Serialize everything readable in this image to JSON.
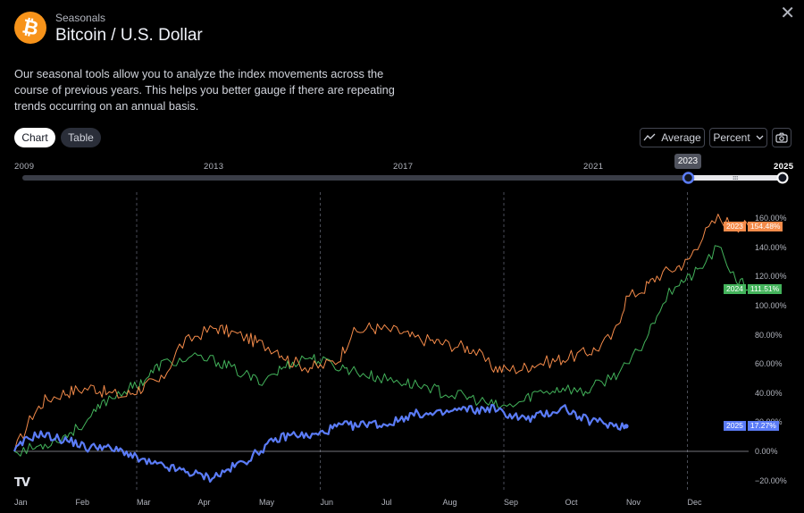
{
  "header": {
    "logo_symbol": "₿",
    "subtitle": "Seasonals",
    "title": "Bitcoin / U.S. Dollar",
    "close_symbol": "✕"
  },
  "description": "Our seasonal tools allow you to analyze the index movements across the course of previous years. This helps you better gauge if there are repeating trends occurring on an annual basis.",
  "view_tabs": {
    "chart": "Chart",
    "table": "Table"
  },
  "toolbar": {
    "average_label": "Average",
    "percent_label": "Percent"
  },
  "range_slider": {
    "year_labels": [
      "2009",
      "2013",
      "2017",
      "2021",
      "2025"
    ],
    "start_year": 2023,
    "end_year": 2025,
    "tooltip": "2023",
    "min_year": 2009,
    "max_year": 2025
  },
  "colors": {
    "y2023": "#f48b4a",
    "y2024": "#43b35b",
    "y2025": "#5b7cf7",
    "background": "#000000"
  },
  "tags": [
    {
      "year": "2023",
      "value": "154.48%"
    },
    {
      "year": "2024",
      "value": "111.51%"
    },
    {
      "year": "2025",
      "value": "17.27%"
    }
  ],
  "watermark": "TV",
  "chart_data": {
    "type": "line",
    "title": "Bitcoin / U.S. Dollar",
    "xlabel": "",
    "ylabel": "Percent",
    "x_tick_labels": [
      "Jan",
      "Feb",
      "Mar",
      "Apr",
      "May",
      "Jun",
      "Jul",
      "Aug",
      "Sep",
      "Oct",
      "Nov",
      "Dec"
    ],
    "y_tick_labels": [
      "160.00%",
      "140.00%",
      "120.00%",
      "100.00%",
      "80.00%",
      "60.00%",
      "40.00%",
      "20.00%",
      "0.00%",
      "−20.00%"
    ],
    "ylim": [
      -22,
      172
    ],
    "xlim": [
      0,
      12
    ],
    "series": [
      {
        "name": "2023",
        "x": [
          0,
          0.3,
          0.5,
          0.8,
          1,
          1.3,
          1.5,
          1.8,
          2,
          2.2,
          2.4,
          2.7,
          3,
          3.3,
          3.5,
          3.8,
          4,
          4.3,
          4.5,
          4.8,
          5,
          5.3,
          5.5,
          5.8,
          6,
          6.3,
          6.5,
          6.8,
          7,
          7.3,
          7.5,
          7.8,
          8,
          8.3,
          8.5,
          8.8,
          9,
          9.3,
          9.5,
          9.8,
          10,
          10.3,
          10.5,
          10.8,
          11,
          11.2,
          11.5,
          11.8,
          12
        ],
        "values": [
          0,
          25,
          35,
          40,
          42,
          44,
          40,
          38,
          42,
          46,
          48,
          72,
          80,
          85,
          82,
          78,
          74,
          70,
          62,
          58,
          58,
          63,
          80,
          85,
          84,
          82,
          78,
          76,
          74,
          72,
          70,
          58,
          56,
          57,
          60,
          62,
          64,
          67,
          70,
          80,
          105,
          112,
          120,
          126,
          130,
          145,
          160,
          155,
          154.48
        ]
      },
      {
        "name": "2024",
        "x": [
          0,
          0.3,
          0.5,
          0.8,
          1,
          1.3,
          1.5,
          1.8,
          2,
          2.2,
          2.4,
          2.7,
          3,
          3.3,
          3.5,
          3.8,
          4,
          4.3,
          4.5,
          4.8,
          5,
          5.3,
          5.5,
          5.8,
          6,
          6.3,
          6.5,
          6.8,
          7,
          7.3,
          7.5,
          7.8,
          8,
          8.3,
          8.5,
          8.8,
          9,
          9.3,
          9.5,
          9.8,
          10,
          10.3,
          10.5,
          10.8,
          11,
          11.2,
          11.5,
          11.8,
          12
        ],
        "values": [
          0,
          2,
          5,
          10,
          15,
          25,
          35,
          42,
          45,
          52,
          60,
          62,
          64,
          62,
          58,
          52,
          48,
          55,
          60,
          65,
          62,
          58,
          56,
          52,
          50,
          48,
          46,
          44,
          40,
          38,
          36,
          32,
          30,
          34,
          40,
          42,
          44,
          40,
          45,
          52,
          58,
          75,
          95,
          115,
          118,
          125,
          140,
          118,
          111.51
        ]
      },
      {
        "name": "2025",
        "x": [
          0,
          0.2,
          0.4,
          0.6,
          0.8,
          1,
          1.2,
          1.4,
          1.6,
          1.8,
          2,
          2.2,
          2.4,
          2.6,
          2.8,
          3,
          3.2,
          3.4,
          3.6,
          3.8,
          4,
          4.2,
          4.4,
          4.6,
          4.8,
          5,
          5.2,
          5.4,
          5.6,
          5.8,
          6,
          6.2,
          6.4,
          6.6,
          6.8,
          7,
          7.2,
          7.4,
          7.6,
          7.8,
          8,
          8.2,
          8.4,
          8.6,
          8.8,
          9,
          9.2,
          9.4,
          9.6,
          9.8,
          10
        ],
        "values": [
          0,
          8,
          12,
          10,
          8,
          6,
          2,
          4,
          1,
          0,
          -5,
          -8,
          -10,
          -12,
          -14,
          -16,
          -18,
          -15,
          -10,
          -6,
          0,
          6,
          10,
          12,
          10,
          12,
          16,
          18,
          17,
          20,
          18,
          20,
          24,
          26,
          25,
          26,
          28,
          29,
          28,
          30,
          26,
          24,
          22,
          25,
          27,
          30,
          24,
          21,
          20,
          18,
          17.27
        ]
      }
    ]
  }
}
